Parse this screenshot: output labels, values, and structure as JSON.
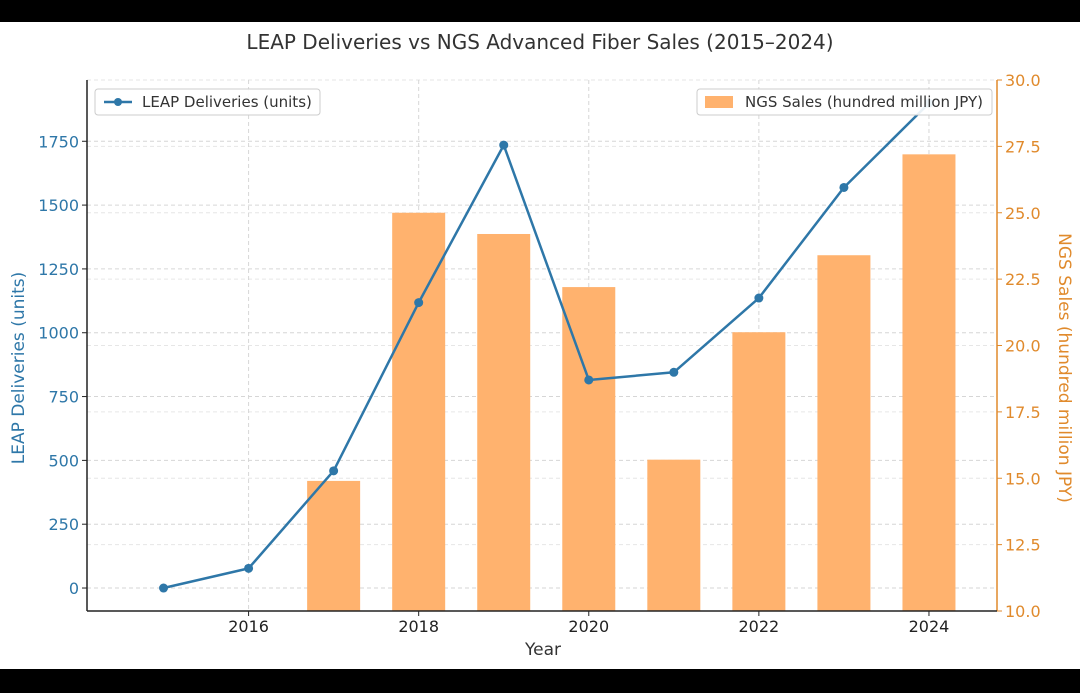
{
  "chart_data": {
    "type": "bar+line",
    "title": "LEAP Deliveries vs NGS Advanced Fiber Sales (2015–2024)",
    "xlabel": "Year",
    "x": [
      2015,
      2016,
      2017,
      2018,
      2019,
      2020,
      2021,
      2022,
      2023,
      2024
    ],
    "xticks": [
      "2016",
      "2018",
      "2020",
      "2022",
      "2024"
    ],
    "xlim": [
      2014.1,
      2024.8
    ],
    "left_axis": {
      "label": "LEAP Deliveries (units)",
      "ylim": [
        -90,
        1990
      ],
      "ticks": [
        0,
        250,
        500,
        750,
        1000,
        1250,
        1500,
        1750
      ],
      "tick_labels": [
        "0",
        "250",
        "500",
        "750",
        "1000",
        "1250",
        "1500",
        "1750"
      ],
      "color": "#2e77a8"
    },
    "right_axis": {
      "label": "NGS Sales (hundred million JPY)",
      "ylim": [
        10.0,
        30.0
      ],
      "ticks": [
        10.0,
        12.5,
        15.0,
        17.5,
        20.0,
        22.5,
        25.0,
        27.5,
        30.0
      ],
      "tick_labels": [
        "10.0",
        "12.5",
        "15.0",
        "17.5",
        "20.0",
        "22.5",
        "25.0",
        "27.5",
        "30.0"
      ],
      "color": "#e08a2c"
    },
    "series": [
      {
        "name": "LEAP Deliveries (units)",
        "type": "line",
        "axis": "left",
        "color": "#2e77a8",
        "values": [
          0,
          77,
          459,
          1118,
          1735,
          815,
          845,
          1136,
          1569,
          1899
        ]
      },
      {
        "name": "NGS Sales (hundred million JPY)",
        "type": "bar",
        "axis": "right",
        "color": "#ffb26e",
        "values": [
          null,
          null,
          14.9,
          25.0,
          24.2,
          22.2,
          15.7,
          20.5,
          23.4,
          27.2
        ]
      }
    ],
    "legend": {
      "line_label": "LEAP Deliveries (units)",
      "bar_label": "NGS Sales (hundred million JPY)",
      "line_position": "top-left",
      "bar_position": "top-right"
    },
    "grid": true
  }
}
